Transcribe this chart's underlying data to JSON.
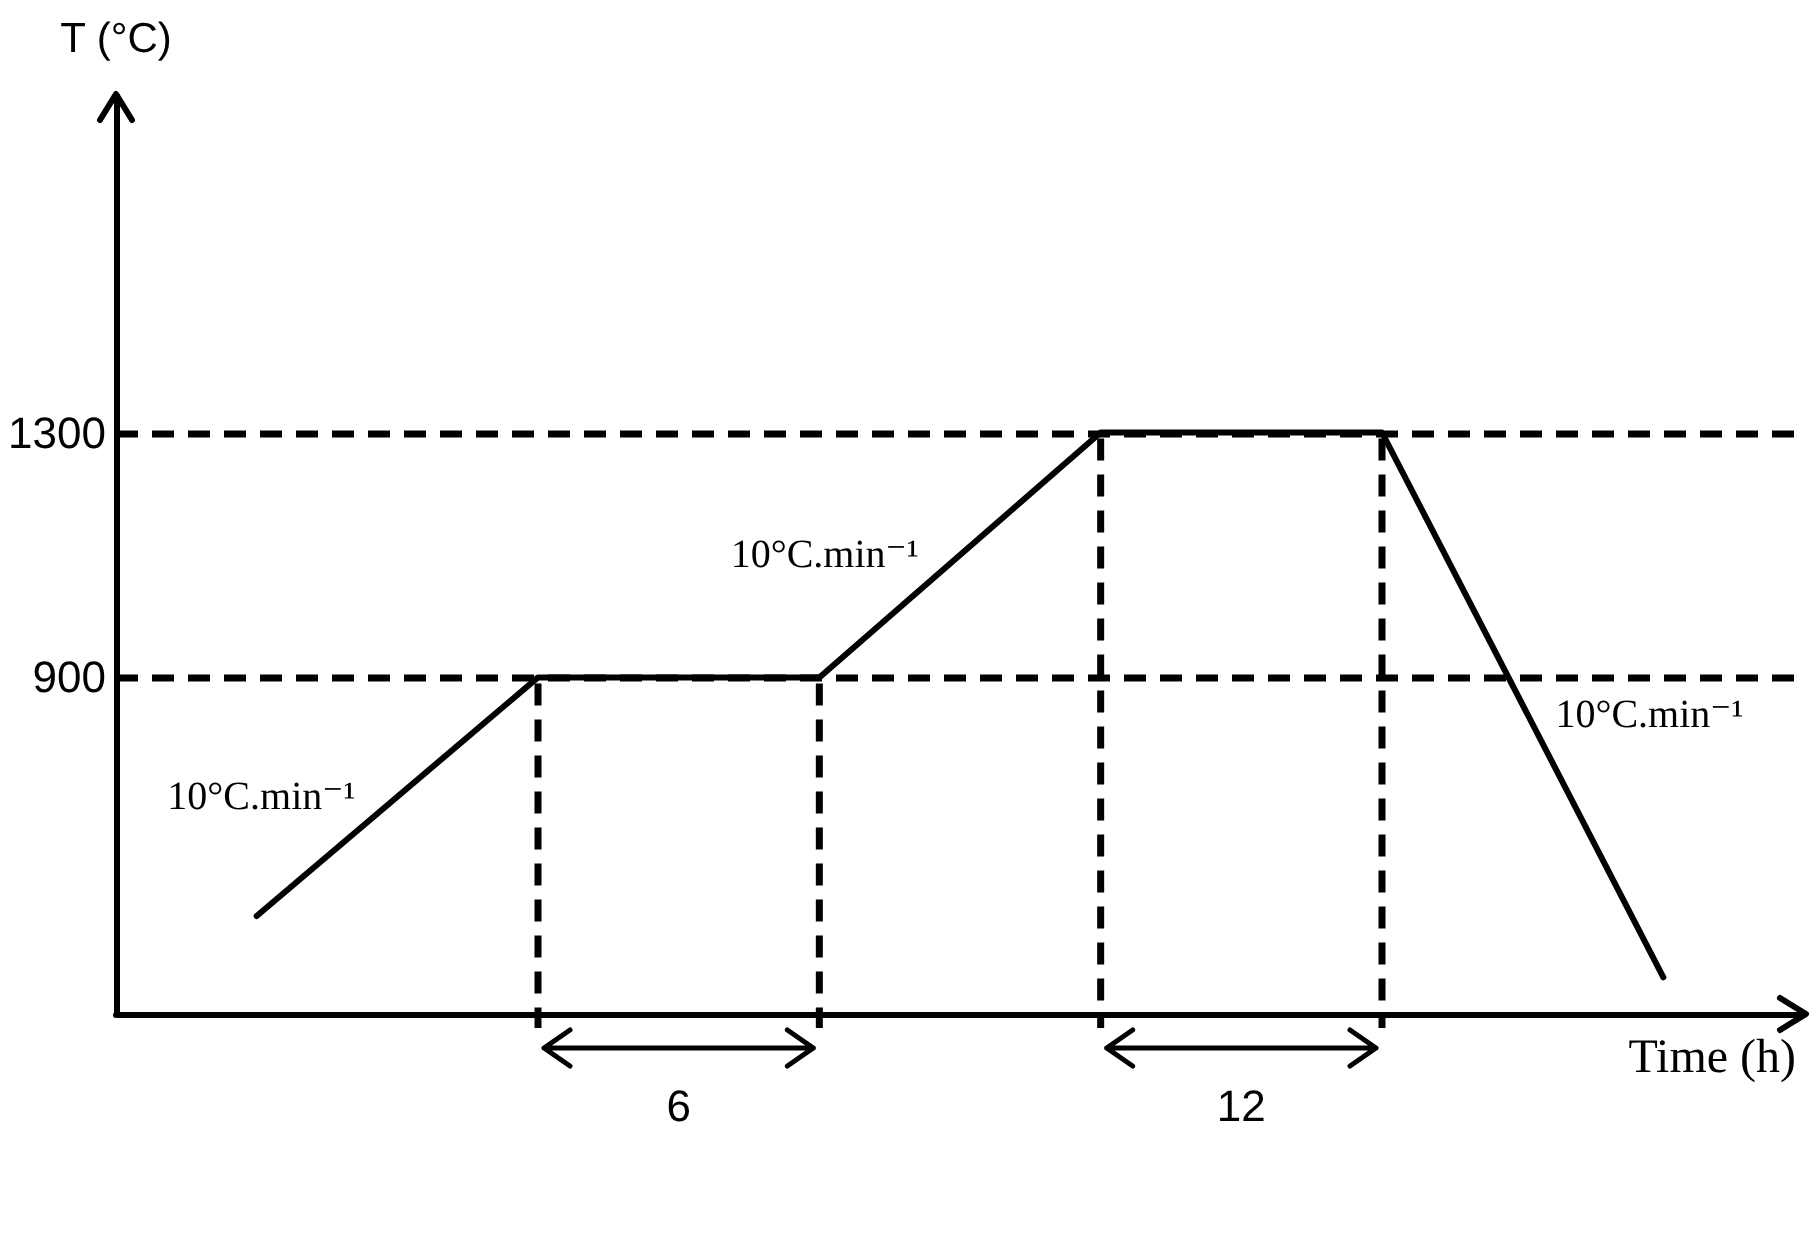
{
  "chart_data": {
    "type": "line",
    "xlabel": "Time (h)",
    "ylabel": "T (°C)",
    "categories": [
      null,
      null,
      null,
      null,
      null,
      null
    ],
    "values": [
      510,
      900,
      900,
      1300,
      1300,
      410
    ],
    "color": "#000000",
    "marker": "none",
    "line_style": "solid",
    "ylim": [
      350,
      1850
    ],
    "yticks": [
      900,
      1300
    ],
    "tick_labels": "y",
    "ref_lines": [
      {
        "axis": "y",
        "value": 900,
        "color": "#000000",
        "line_style": "dashed"
      },
      {
        "axis": "y",
        "value": 1300,
        "color": "#000000",
        "line_style": "dashed"
      }
    ],
    "annotations": [
      "10°C.min⁻¹",
      "6",
      "10°C.min⁻¹",
      "12",
      "10°C.min⁻¹"
    ]
  }
}
